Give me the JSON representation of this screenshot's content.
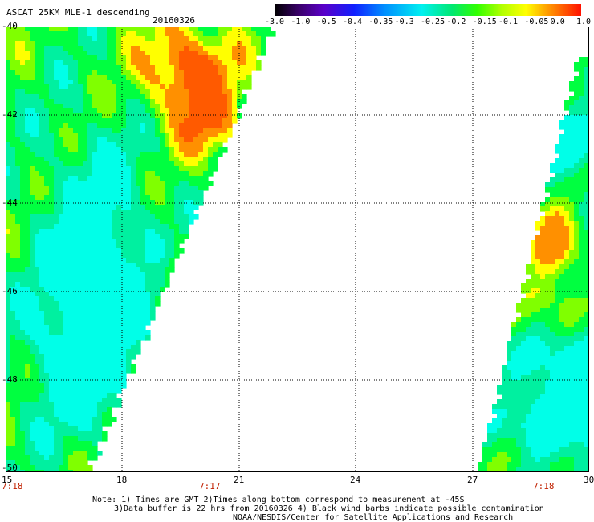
{
  "title": "ASCAT 25KM MLE-1 descending",
  "date": "20160326",
  "colorbar": {
    "ticks": [
      "-3.0",
      "-1.0",
      "-0.5",
      "-0.4",
      "-0.35",
      "-0.3",
      "-0.25",
      "-0.2",
      "-0.15",
      "-0.1",
      "-0.05",
      "0.0",
      "1.0"
    ]
  },
  "map": {
    "lat_labels": [
      "-40",
      "-42",
      "-44",
      "-46",
      "-48",
      "-50"
    ],
    "lon_labels": [
      "15",
      "18",
      "21",
      "24",
      "27",
      "30"
    ],
    "time_labels": [
      "7:18",
      "7:17",
      "7:18"
    ]
  },
  "notes": {
    "line1": "Note: 1) Times are GMT 2)Times along bottom correspond to measurement at -45S",
    "line2": "3)Data buffer is 22 hrs from 20160326 4) Black wind barbs indicate possible contamination",
    "line3": "NOAA/NESDIS/Center for Satellite Applications and Research"
  },
  "colors": {
    "cyan": "#00ffe8",
    "aqua": "#00f0a0",
    "green": "#00ff40",
    "lime": "#80ff00",
    "yellow": "#ffff00",
    "orange": "#ff9000",
    "darkorange": "#ff5a00"
  }
}
